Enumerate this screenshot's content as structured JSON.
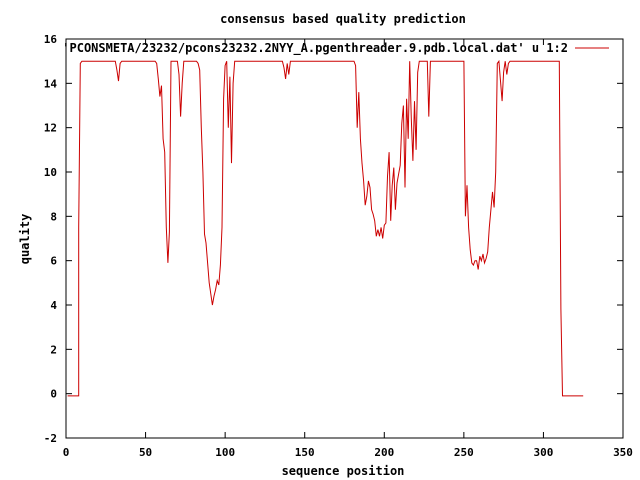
{
  "chart_data": {
    "type": "line",
    "title": "consensus based quality prediction",
    "xlabel": "sequence position",
    "ylabel": "quality",
    "xlim": [
      0,
      350
    ],
    "ylim": [
      -2,
      16
    ],
    "xticks": [
      0,
      50,
      100,
      150,
      200,
      250,
      300,
      350
    ],
    "yticks": [
      -2,
      0,
      2,
      4,
      6,
      8,
      10,
      12,
      14,
      16
    ],
    "grid": false,
    "legend_position": "top-right",
    "line_color": "#cc0000",
    "series": [
      {
        "name": "'PCONSMETA/23232/pcons23232.2NYY_A.pgenthreader.9.pdb.local.dat' u 1:2",
        "points": [
          [
            1,
            -0.1
          ],
          [
            8,
            -0.1
          ],
          [
            8,
            7.5
          ],
          [
            9,
            14.9
          ],
          [
            10,
            15
          ],
          [
            31,
            15
          ],
          [
            32,
            14.6
          ],
          [
            33,
            14.1
          ],
          [
            34,
            14.9
          ],
          [
            35,
            15
          ],
          [
            56,
            15
          ],
          [
            57,
            14.9
          ],
          [
            58,
            14.2
          ],
          [
            59,
            13.4
          ],
          [
            60,
            13.9
          ],
          [
            61,
            11.5
          ],
          [
            62,
            10.9
          ],
          [
            63,
            7.5
          ],
          [
            64,
            5.9
          ],
          [
            65,
            7.3
          ],
          [
            66,
            15
          ],
          [
            70,
            15
          ],
          [
            71,
            14.4
          ],
          [
            72,
            12.5
          ],
          [
            73,
            14
          ],
          [
            74,
            15
          ],
          [
            82,
            15
          ],
          [
            83,
            14.9
          ],
          [
            84,
            14.6
          ],
          [
            85,
            12
          ],
          [
            86,
            10
          ],
          [
            87,
            7.2
          ],
          [
            88,
            6.8
          ],
          [
            89,
            5.9
          ],
          [
            90,
            5
          ],
          [
            91,
            4.5
          ],
          [
            92,
            4
          ],
          [
            93,
            4.4
          ],
          [
            94,
            4.7
          ],
          [
            95,
            5.1
          ],
          [
            96,
            4.9
          ],
          [
            97,
            5.8
          ],
          [
            98,
            7.5
          ],
          [
            99,
            13.3
          ],
          [
            100,
            14.8
          ],
          [
            101,
            15
          ],
          [
            102,
            12
          ],
          [
            103,
            14.3
          ],
          [
            104,
            10.4
          ],
          [
            105,
            14
          ],
          [
            106,
            15
          ],
          [
            136,
            15
          ],
          [
            137,
            14.7
          ],
          [
            138,
            14.2
          ],
          [
            139,
            14.9
          ],
          [
            140,
            14.4
          ],
          [
            141,
            15
          ],
          [
            181,
            15
          ],
          [
            182,
            14.8
          ],
          [
            183,
            12
          ],
          [
            184,
            13.6
          ],
          [
            185,
            11.5
          ],
          [
            186,
            10.4
          ],
          [
            187,
            9.6
          ],
          [
            188,
            8.5
          ],
          [
            189,
            8.9
          ],
          [
            190,
            9.6
          ],
          [
            191,
            9.3
          ],
          [
            192,
            8.3
          ],
          [
            193,
            8.1
          ],
          [
            194,
            7.8
          ],
          [
            195,
            7.1
          ],
          [
            196,
            7.4
          ],
          [
            197,
            7.1
          ],
          [
            198,
            7.5
          ],
          [
            199,
            7
          ],
          [
            200,
            7.6
          ],
          [
            201,
            7.7
          ],
          [
            202,
            9.8
          ],
          [
            203,
            10.9
          ],
          [
            204,
            7.8
          ],
          [
            205,
            9.4
          ],
          [
            206,
            10.2
          ],
          [
            207,
            8.3
          ],
          [
            208,
            9.5
          ],
          [
            209,
            9.9
          ],
          [
            210,
            10.3
          ],
          [
            211,
            12.2
          ],
          [
            212,
            13
          ],
          [
            213,
            9.3
          ],
          [
            214,
            13.3
          ],
          [
            215,
            11.5
          ],
          [
            216,
            15
          ],
          [
            217,
            12.4
          ],
          [
            218,
            10.5
          ],
          [
            219,
            13.2
          ],
          [
            220,
            11
          ],
          [
            221,
            14.5
          ],
          [
            222,
            15
          ],
          [
            227,
            15
          ],
          [
            228,
            12.5
          ],
          [
            229,
            15
          ],
          [
            250,
            15
          ],
          [
            251,
            8
          ],
          [
            252,
            9.4
          ],
          [
            253,
            7.5
          ],
          [
            254,
            6.5
          ],
          [
            255,
            5.9
          ],
          [
            256,
            5.8
          ],
          [
            257,
            6
          ],
          [
            258,
            6
          ],
          [
            259,
            5.6
          ],
          [
            260,
            6.2
          ],
          [
            261,
            6
          ],
          [
            262,
            6.3
          ],
          [
            263,
            5.9
          ],
          [
            264,
            6.1
          ],
          [
            265,
            6.4
          ],
          [
            266,
            7.5
          ],
          [
            267,
            8.3
          ],
          [
            268,
            9.1
          ],
          [
            269,
            8.4
          ],
          [
            270,
            10
          ],
          [
            271,
            14.9
          ],
          [
            272,
            15
          ],
          [
            273,
            14.1
          ],
          [
            274,
            13.2
          ],
          [
            275,
            14.5
          ],
          [
            276,
            15
          ],
          [
            277,
            14.4
          ],
          [
            278,
            14.9
          ],
          [
            279,
            15
          ],
          [
            310,
            15
          ],
          [
            311,
            3.8
          ],
          [
            312,
            -0.1
          ],
          [
            325,
            -0.1
          ]
        ]
      }
    ]
  }
}
